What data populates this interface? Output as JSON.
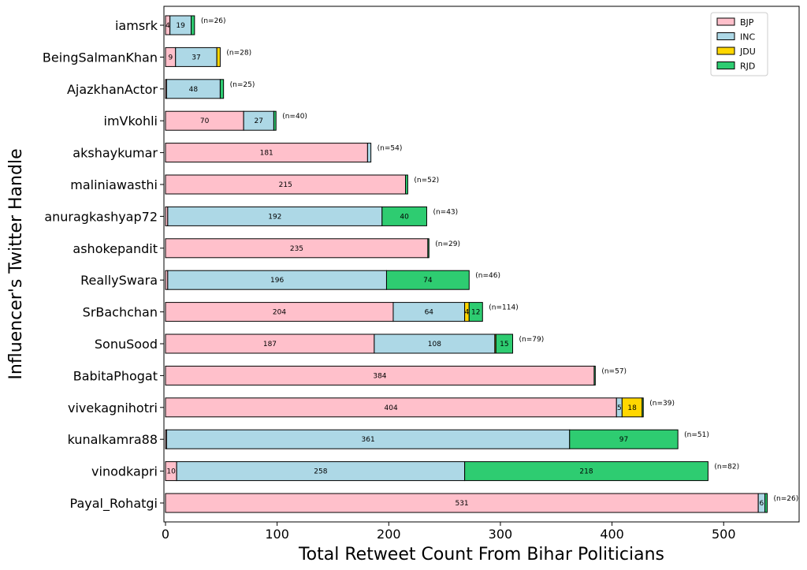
{
  "chart_data": {
    "type": "bar",
    "orientation": "horizontal",
    "stacked": true,
    "xlabel": "Total Retweet Count From Bihar Politicians",
    "ylabel": "Influencer's Twitter Handle",
    "xlim": [
      0,
      567
    ],
    "xticks": [
      0,
      100,
      200,
      300,
      400,
      500
    ],
    "grid": false,
    "legend_position": "top-right",
    "categories": [
      "iamsrk",
      "BeingSalmanKhan",
      "AjazkhanActor",
      "imVkohli",
      "akshaykumar",
      "maliniawasthi",
      "anuragkashyap72",
      "ashokepandit",
      "ReallySwara",
      "SrBachchan",
      "SonuSood",
      "BabitaPhogat",
      "vivekagnihotri",
      "kunalkamra88",
      "vinodkapri",
      "Payal_Rohatgi"
    ],
    "n_labels": [
      "(n=26)",
      "(n=28)",
      "(n=25)",
      "(n=40)",
      "(n=54)",
      "(n=52)",
      "(n=43)",
      "(n=29)",
      "(n=46)",
      "(n=114)",
      "(n=79)",
      "(n=57)",
      "(n=39)",
      "(n=51)",
      "(n=82)",
      "(n=26)"
    ],
    "series": [
      {
        "name": "BJP",
        "color": "#FFC0CB",
        "values": [
          4,
          9,
          1,
          70,
          181,
          215,
          2,
          235,
          2,
          204,
          187,
          384,
          404,
          1,
          10,
          531
        ]
      },
      {
        "name": "INC",
        "color": "#ADD8E6",
        "values": [
          19,
          37,
          48,
          27,
          3,
          0,
          192,
          0,
          196,
          64,
          108,
          0,
          5,
          361,
          258,
          6
        ]
      },
      {
        "name": "JDU",
        "color": "#FFD700",
        "values": [
          0,
          3,
          0,
          0,
          0,
          0,
          0,
          0,
          0,
          4,
          1,
          0,
          18,
          0,
          0,
          0
        ]
      },
      {
        "name": "RJD",
        "color": "#2ECC71",
        "values": [
          3,
          0,
          3,
          2,
          0,
          2,
          40,
          1,
          74,
          12,
          15,
          1,
          1,
          97,
          218,
          2
        ]
      }
    ],
    "segment_labels": [
      [
        "4",
        "19",
        "",
        ""
      ],
      [
        "9",
        "37",
        "",
        ""
      ],
      [
        "",
        "48",
        "",
        ""
      ],
      [
        "70",
        "27",
        "",
        ""
      ],
      [
        "181",
        "",
        "",
        ""
      ],
      [
        "215",
        "",
        "",
        ""
      ],
      [
        "",
        "192",
        "",
        "40"
      ],
      [
        "235",
        "",
        "",
        ""
      ],
      [
        "",
        "196",
        "",
        "74"
      ],
      [
        "204",
        "64",
        "4",
        "12"
      ],
      [
        "187",
        "108",
        "",
        "15"
      ],
      [
        "384",
        "",
        "",
        ""
      ],
      [
        "404",
        "5",
        "18",
        ""
      ],
      [
        "",
        "361",
        "",
        "97"
      ],
      [
        "10",
        "258",
        "",
        "218"
      ],
      [
        "531",
        "6",
        "",
        ""
      ]
    ]
  }
}
